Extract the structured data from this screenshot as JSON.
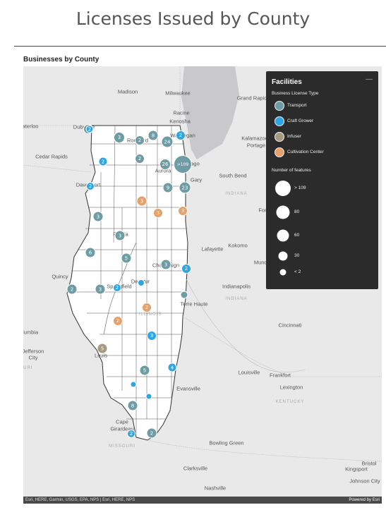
{
  "page": {
    "title": "Licenses Issued by County"
  },
  "panel": {
    "title": "Businesses by County"
  },
  "colors": {
    "transport": "#6e9ca4",
    "craft_grower": "#2fa6e3",
    "infuser": "#a89a80",
    "cultivation_center": "#e6a06c",
    "lake": "#c9c9cc",
    "land": "#e9e9e9",
    "state_fill": "#ffffff"
  },
  "map": {
    "places": [
      {
        "id": "madison",
        "name": "Madison"
      },
      {
        "id": "milwaukee",
        "name": "Milwaukee"
      },
      {
        "id": "grand-rapids",
        "name": "Grand Rapids"
      },
      {
        "id": "racine",
        "name": "Racine"
      },
      {
        "id": "kenosha",
        "name": "Kenosha"
      },
      {
        "id": "waterloo",
        "name": "aterloo"
      },
      {
        "id": "dubuque",
        "name": "Dubuque"
      },
      {
        "id": "kalamazoo",
        "name": "Kalamazoo"
      },
      {
        "id": "portage",
        "name": "Portage"
      },
      {
        "id": "cedar-rapids",
        "name": "Cedar Rapids"
      },
      {
        "id": "rockford",
        "name": "Rockford"
      },
      {
        "id": "waukegan",
        "name": "Waukegan"
      },
      {
        "id": "chicago",
        "name": "Chicago"
      },
      {
        "id": "aurora",
        "name": "Aurora"
      },
      {
        "id": "south-bend",
        "name": "South Bend"
      },
      {
        "id": "gary",
        "name": "Gary"
      },
      {
        "id": "davenport",
        "name": "Davenport"
      },
      {
        "id": "indiana-1",
        "name": "INDIANA"
      },
      {
        "id": "fort",
        "name": "Fort"
      },
      {
        "id": "peoria",
        "name": "Peoria"
      },
      {
        "id": "lafayette",
        "name": "Lafayette"
      },
      {
        "id": "kokomo",
        "name": "Kokomo"
      },
      {
        "id": "quincy",
        "name": "Quincy"
      },
      {
        "id": "champaign",
        "name": "Champaign"
      },
      {
        "id": "munc",
        "name": "Munc"
      },
      {
        "id": "springfield",
        "name": "Springfield"
      },
      {
        "id": "decatur",
        "name": "Decatur"
      },
      {
        "id": "indianapolis",
        "name": "Indianapolis"
      },
      {
        "id": "indiana-2",
        "name": "INDIANA"
      },
      {
        "id": "terre-haute",
        "name": "Terre Haute"
      },
      {
        "id": "illinois",
        "name": "ILLINOIS"
      },
      {
        "id": "cincinnati",
        "name": "Cincinnati"
      },
      {
        "id": "columbia",
        "name": "olumbia"
      },
      {
        "id": "jefferson-city-1",
        "name": "Jefferson"
      },
      {
        "id": "jefferson-city-2",
        "name": "City"
      },
      {
        "id": "st-louis",
        "name": "Louis"
      },
      {
        "id": "missouri-1",
        "name": "OURI"
      },
      {
        "id": "louisville",
        "name": "Louisville"
      },
      {
        "id": "frankfort",
        "name": "Frankfort"
      },
      {
        "id": "lexington",
        "name": "Lexington"
      },
      {
        "id": "evansville",
        "name": "Evansville"
      },
      {
        "id": "kentucky",
        "name": "KENTUCKY"
      },
      {
        "id": "cape-girardeau-1",
        "name": "Cape"
      },
      {
        "id": "cape-girardeau-2",
        "name": "Girardeau"
      },
      {
        "id": "missouri-2",
        "name": "MISSOURI"
      },
      {
        "id": "bowling-green",
        "name": "Bowling Green"
      },
      {
        "id": "clarksville",
        "name": "Clarksville"
      },
      {
        "id": "kingsport",
        "name": "Kingsport"
      },
      {
        "id": "bristol",
        "name": "Bristol"
      },
      {
        "id": "johnson-city",
        "name": "Johnson City"
      },
      {
        "id": "nashville",
        "name": "Nashville"
      }
    ],
    "markers": [
      {
        "type": "transport",
        "label": "3"
      },
      {
        "type": "transport",
        "label": "2"
      },
      {
        "type": "transport",
        "label": "8"
      },
      {
        "type": "transport",
        "label": "24"
      },
      {
        "type": "transport",
        "label": "2"
      },
      {
        "type": "transport",
        "label": "2"
      },
      {
        "type": "transport",
        "label": "26"
      },
      {
        "type": "transport",
        "label": ">109"
      },
      {
        "type": "transport",
        "label": "9"
      },
      {
        "type": "transport",
        "label": "23"
      },
      {
        "type": "transport",
        "label": "3"
      },
      {
        "type": "transport",
        "label": "3"
      },
      {
        "type": "transport",
        "label": "6"
      },
      {
        "type": "transport",
        "label": "5"
      },
      {
        "type": "transport",
        "label": "3"
      },
      {
        "type": "transport",
        "label": "2"
      },
      {
        "type": "transport",
        "label": "3"
      },
      {
        "type": "transport",
        "label": ""
      },
      {
        "type": "transport",
        "label": "5"
      },
      {
        "type": "transport",
        "label": "8"
      },
      {
        "type": "transport",
        "label": "2"
      },
      {
        "type": "craft_grower",
        "label": "2"
      },
      {
        "type": "craft_grower",
        "label": "2"
      },
      {
        "type": "craft_grower",
        "label": "2"
      },
      {
        "type": "craft_grower",
        "label": "2"
      },
      {
        "type": "craft_grower",
        "label": "2"
      },
      {
        "type": "craft_grower",
        "label": "2"
      },
      {
        "type": "craft_grower",
        "label": ""
      },
      {
        "type": "craft_grower",
        "label": "3"
      },
      {
        "type": "craft_grower",
        "label": "4"
      },
      {
        "type": "craft_grower",
        "label": ""
      },
      {
        "type": "craft_grower",
        "label": ""
      },
      {
        "type": "craft_grower",
        "label": "2"
      },
      {
        "type": "cultivation_center",
        "label": "3"
      },
      {
        "type": "cultivation_center",
        "label": "3"
      },
      {
        "type": "cultivation_center",
        "label": "3"
      },
      {
        "type": "cultivation_center",
        "label": "2"
      },
      {
        "type": "cultivation_center",
        "label": "2"
      },
      {
        "type": "infuser",
        "label": "5"
      }
    ],
    "attribution": "Esri, HERE, Garmin, USGS, EPA, NPS | Esri, HERE, NPS",
    "powered_by": "Powered by Esri"
  },
  "legend": {
    "title": "Facilities",
    "minimize": "—",
    "type_title": "Business License Type",
    "types": [
      {
        "key": "transport",
        "label": "Transport"
      },
      {
        "key": "craft_grower",
        "label": "Craft Grower"
      },
      {
        "key": "infuser",
        "label": "Infuser"
      },
      {
        "key": "cultivation_center",
        "label": "Cultivation Center"
      }
    ],
    "size_title": "Number of features",
    "sizes": [
      {
        "label": "> 109"
      },
      {
        "label": "80"
      },
      {
        "label": "60"
      },
      {
        "label": "30"
      },
      {
        "label": "< 2"
      }
    ]
  }
}
